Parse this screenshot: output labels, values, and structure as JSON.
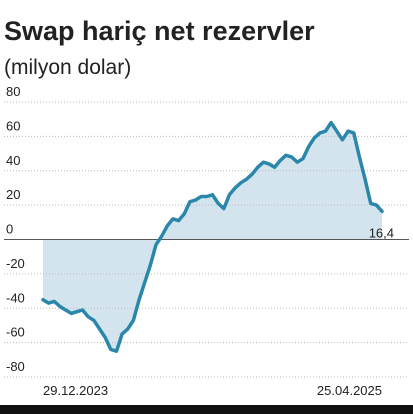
{
  "chart_data": {
    "type": "line",
    "title": "Swap hariç net rezervler",
    "subtitle": "(milyon dolar)",
    "categories": [
      "29.12.2023",
      null,
      null,
      null,
      null,
      null,
      null,
      null,
      null,
      null,
      null,
      null,
      null,
      null,
      null,
      null,
      null,
      null,
      null,
      null,
      null,
      null,
      null,
      null,
      null,
      null,
      null,
      null,
      null,
      null,
      null,
      null,
      null,
      null,
      null,
      null,
      null,
      null,
      null,
      null,
      null,
      null,
      null,
      null,
      null,
      null,
      null,
      null,
      null,
      null,
      null,
      null,
      null,
      null,
      null,
      null,
      null,
      null,
      null,
      null,
      "25.04.2025"
    ],
    "values": [
      -35,
      -37,
      -36,
      -39,
      -41,
      -43,
      -42,
      -41,
      -45,
      -47,
      -52,
      -57,
      -64,
      -65,
      -55,
      -52,
      -47,
      -35,
      -25,
      -15,
      -3,
      2,
      8,
      12,
      11,
      15,
      22,
      23,
      25,
      25,
      26,
      21,
      18,
      26,
      30,
      33,
      35,
      38,
      42,
      45,
      44,
      42,
      46,
      49,
      48,
      45,
      47,
      54,
      59,
      62,
      63,
      68,
      63,
      58,
      63,
      62,
      48,
      35,
      21,
      20,
      16.4
    ],
    "value_labels": [
      null,
      null,
      null,
      null,
      null,
      null,
      null,
      null,
      null,
      null,
      null,
      null,
      null,
      null,
      null,
      null,
      null,
      null,
      null,
      null,
      null,
      null,
      null,
      null,
      null,
      null,
      null,
      null,
      null,
      null,
      null,
      null,
      null,
      null,
      null,
      null,
      null,
      null,
      null,
      null,
      null,
      null,
      null,
      null,
      null,
      null,
      null,
      null,
      null,
      null,
      null,
      null,
      null,
      null,
      null,
      null,
      null,
      null,
      null,
      null,
      "16,4"
    ],
    "color": "#2b87a9",
    "fill_color": "#d3e4ee",
    "ylim": [
      -80,
      80
    ],
    "yticks": [
      -80,
      -60,
      -40,
      -20,
      0,
      20,
      40,
      60,
      80
    ],
    "grid": true
  }
}
